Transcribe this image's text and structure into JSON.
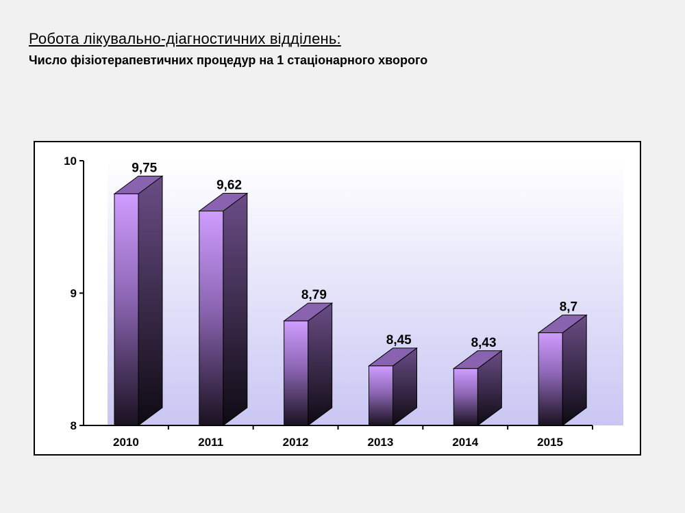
{
  "slide": {
    "title": "Робота лікувально-діагностичних відділень:",
    "subtitle": "Число фізіотерапевтичних процедур на 1 стаціонарного хворого"
  },
  "chart_data": {
    "type": "bar",
    "style": "3d",
    "categories": [
      "2010",
      "2011",
      "2012",
      "2013",
      "2014",
      "2015"
    ],
    "values": [
      9.75,
      9.62,
      8.79,
      8.45,
      8.43,
      8.7
    ],
    "value_labels": [
      "9,75",
      "9,62",
      "8,79",
      "8,45",
      "8,43",
      "8,7"
    ],
    "ylim": [
      8,
      10
    ],
    "yticks": [
      8,
      9,
      10
    ],
    "ytick_labels": [
      "8",
      "9",
      "10"
    ],
    "grid": false,
    "legend": "none",
    "colors": {
      "bar_front_top": "#cf9dff",
      "bar_front_bottom": "#1a1120",
      "bar_side_top": "#6a4d86",
      "bar_side_bottom": "#0e0a12",
      "bar_top": "#8a63b0",
      "plot_bg_top": "#ffffff",
      "plot_bg_bottom": "#c9c6f3"
    }
  }
}
